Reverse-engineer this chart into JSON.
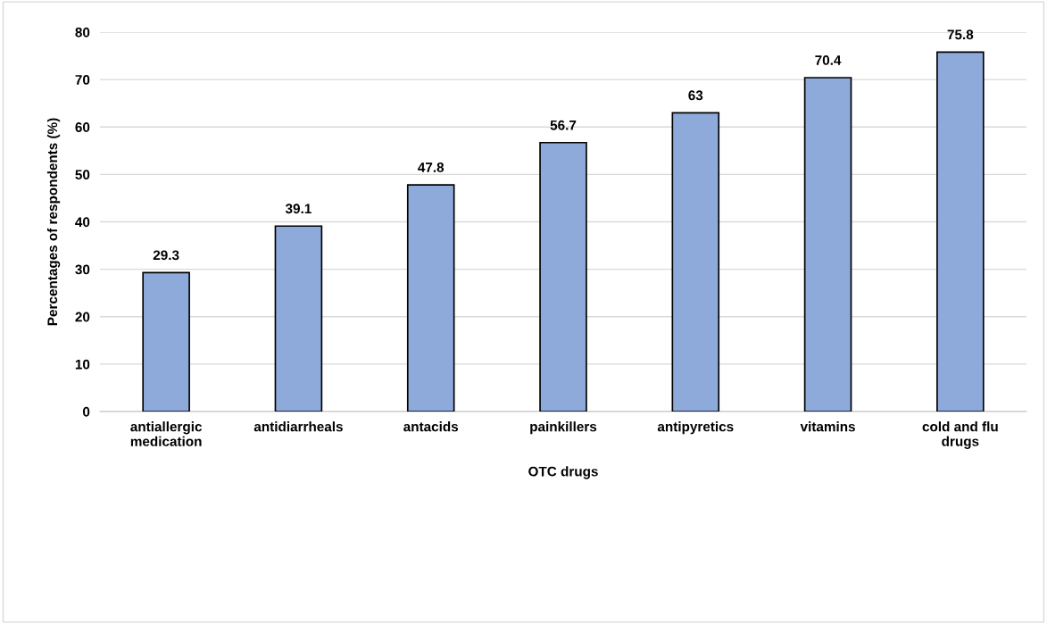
{
  "chart_data": {
    "type": "bar",
    "categories": [
      "antiallergic\nmedication",
      "antidiarrheals",
      "antacids",
      "painkillers",
      "antipyretics",
      "vitamins",
      "cold and flu\ndrugs"
    ],
    "values": [
      29.3,
      39.1,
      47.8,
      56.7,
      63,
      70.4,
      75.8
    ],
    "color": "#8eaadb",
    "xlabel": "OTC drugs",
    "ylabel": "Percentages of respondents (%)",
    "ylim": [
      0,
      80
    ],
    "yticks": [
      0,
      10,
      20,
      30,
      40,
      50,
      60,
      70,
      80
    ],
    "grid": "y",
    "data_labels": true
  }
}
